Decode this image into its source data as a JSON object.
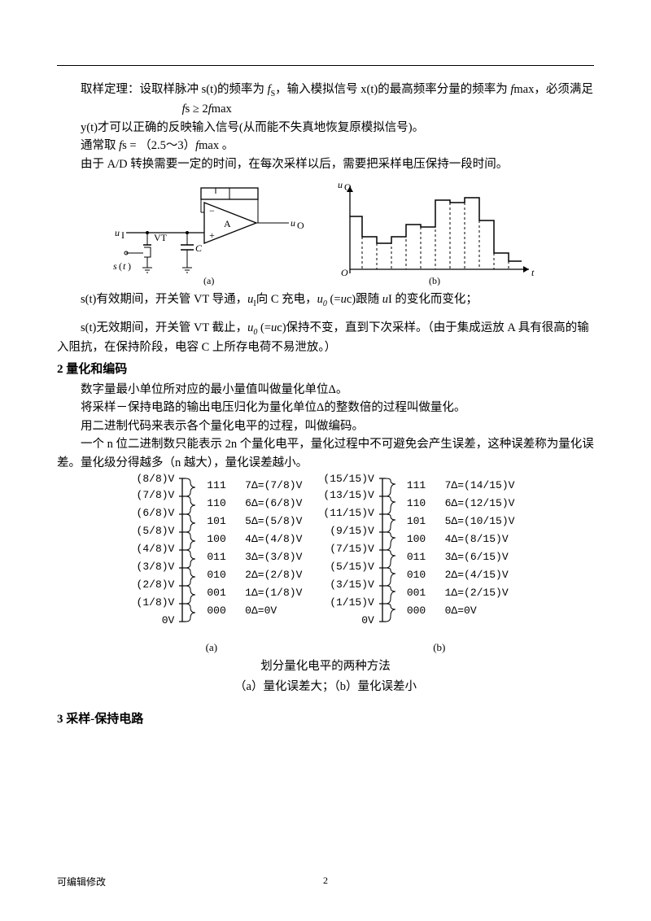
{
  "p1_a": "取样定理：设取样脉冲 s(t)的频率为 ",
  "p1_b": "，输入模拟信号 x(t)的最高频率分量的频率为 ",
  "p1_c": "max，必须满足",
  "cond1": "s ≥ 2",
  "cond2": "max",
  "p2": "y(t)才可以正确的反映输入信号(从而能不失真地恢复原模拟信号)。",
  "p3_a": "通常取 ",
  "p3_b": "s  = （2.5～3）",
  "p3_c": "max  。",
  "p4": "由于 A/D 转换需要一定的时间，在每次采样以后，需要把采样电压保持一段时间。",
  "figab_a": "(a)",
  "figab_b": "(b)",
  "p5_a": "s(t)有效期间，开关管 VT 导通，",
  "p5_b": "向 C 充电，",
  "p5_c": " (=",
  "p5_d": "c)跟随 ",
  "p5_e": "I 的变化而变化；",
  "p6_a": "s(t)无效期间，开关管 VT 截止，",
  "p6_b": " (=",
  "p6_c": "c)保持不变，直到下次采样。（由于集成运放 A 具有很高的输入阻抗，在保持阶段，电容 C 上所存电荷不易泄放。）",
  "h2": "2  量化和编码",
  "q1": "数字量最小单位所对应的最小量值叫做量化单位Δ。",
  "q2": "将采样－保持电路的输出电压归化为量化单位Δ的整数倍的过程叫做量化。",
  "q3": "用二进制代码来表示各个量化电平的过程，叫做编码。",
  "q4": "一个 n 位二进制数只能表示 2n 个量化电平，量化过程中不可避免会产生误差，这种误差称为量化误差。量化级分得越多（n 越大），量化误差越小。",
  "qa": {
    "left": [
      "(8/8)V",
      "(7/8)V",
      "(6/8)V",
      "(5/8)V",
      "(4/8)V",
      "(3/8)V",
      "(2/8)V",
      "(1/8)V",
      "0V"
    ],
    "codes": [
      "111",
      "110",
      "101",
      "100",
      "011",
      "010",
      "001",
      "000"
    ],
    "delta": [
      "7Δ=(7/8)V",
      "6Δ=(6/8)V",
      "5Δ=(5/8)V",
      "4Δ=(4/8)V",
      "3Δ=(3/8)V",
      "2Δ=(2/8)V",
      "1Δ=(1/8)V",
      "0Δ=0V"
    ]
  },
  "qb": {
    "left": [
      "(15/15)V",
      "(13/15)V",
      "(11/15)V",
      "(9/15)V",
      "(7/15)V",
      "(5/15)V",
      "(3/15)V",
      "(1/15)V",
      "0V"
    ],
    "codes": [
      "111",
      "110",
      "101",
      "100",
      "011",
      "010",
      "001",
      "000"
    ],
    "delta": [
      "7Δ=(14/15)V",
      "6Δ=(12/15)V",
      "5Δ=(10/15)V",
      "4Δ=(8/15)V",
      "3Δ=(6/15)V",
      "2Δ=(4/15)V",
      "1Δ=(2/15)V",
      "0Δ=0V"
    ]
  },
  "qcap1": "划分量化电平的两种方法",
  "qcap2": "（a）量化误差大；（b）量化误差小",
  "h3": "3  采样-保持电路",
  "footL": "可编辑修改",
  "footPg": "2"
}
